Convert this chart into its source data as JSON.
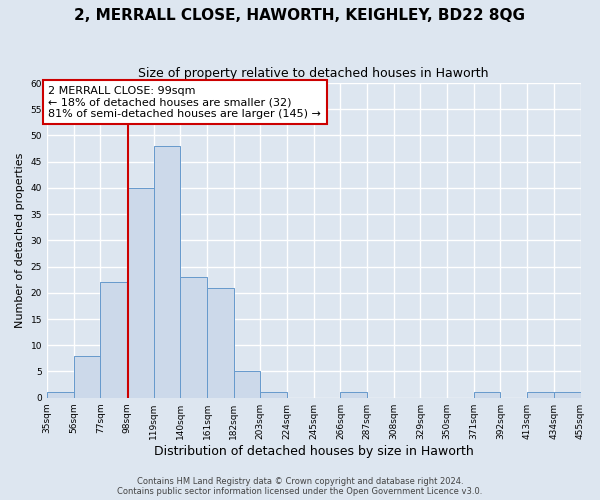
{
  "title": "2, MERRALL CLOSE, HAWORTH, KEIGHLEY, BD22 8QG",
  "subtitle": "Size of property relative to detached houses in Haworth",
  "xlabel": "Distribution of detached houses by size in Haworth",
  "ylabel": "Number of detached properties",
  "bar_color": "#ccd9ea",
  "bar_edge_color": "#6699cc",
  "background_color": "#dde6f0",
  "plot_bg_color": "#dde6f0",
  "grid_color": "#ffffff",
  "bin_edges": [
    35,
    56,
    77,
    98,
    119,
    140,
    161,
    182,
    203,
    224,
    245,
    266,
    287,
    308,
    329,
    350,
    371,
    392,
    413,
    434,
    455
  ],
  "bin_labels": [
    "35sqm",
    "56sqm",
    "77sqm",
    "98sqm",
    "119sqm",
    "140sqm",
    "161sqm",
    "182sqm",
    "203sqm",
    "224sqm",
    "245sqm",
    "266sqm",
    "287sqm",
    "308sqm",
    "329sqm",
    "350sqm",
    "371sqm",
    "392sqm",
    "413sqm",
    "434sqm",
    "455sqm"
  ],
  "counts": [
    1,
    8,
    22,
    40,
    48,
    23,
    21,
    5,
    1,
    0,
    0,
    1,
    0,
    0,
    0,
    0,
    1,
    0,
    1,
    1
  ],
  "vline_x": 99,
  "vline_color": "#cc0000",
  "annotation_line1": "2 MERRALL CLOSE: 99sqm",
  "annotation_line2": "← 18% of detached houses are smaller (32)",
  "annotation_line3": "81% of semi-detached houses are larger (145) →",
  "annotation_box_facecolor": "#ffffff",
  "annotation_border_color": "#cc0000",
  "ylim": [
    0,
    60
  ],
  "yticks": [
    0,
    5,
    10,
    15,
    20,
    25,
    30,
    35,
    40,
    45,
    50,
    55,
    60
  ],
  "footer1": "Contains HM Land Registry data © Crown copyright and database right 2024.",
  "footer2": "Contains public sector information licensed under the Open Government Licence v3.0.",
  "title_fontsize": 11,
  "subtitle_fontsize": 9,
  "footer_fontsize": 6,
  "ylabel_fontsize": 8,
  "xlabel_fontsize": 9,
  "tick_fontsize": 6.5
}
